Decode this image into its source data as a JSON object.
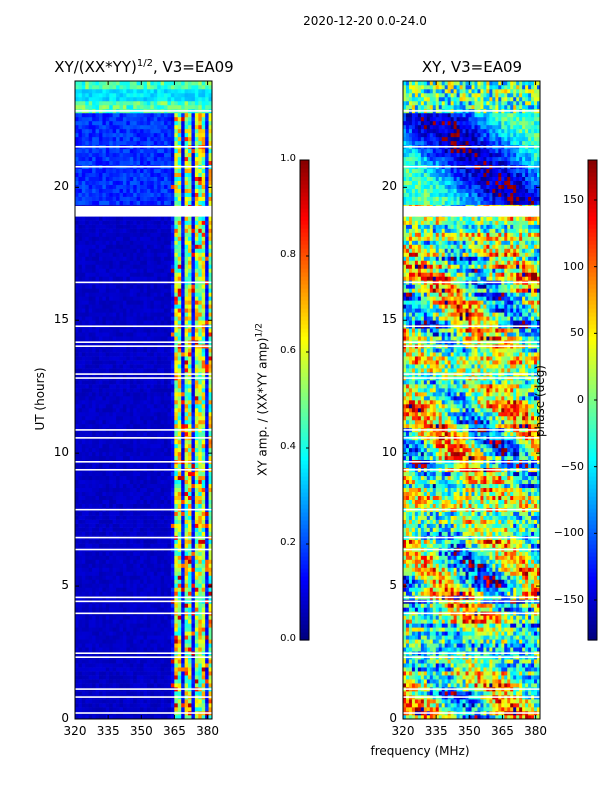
{
  "figure": {
    "suptitle": "2020-12-20 0.0-24.0",
    "xlabel": "frequency (MHz)"
  },
  "chart_data": [
    {
      "type": "heatmap",
      "title_main": "XY/(XX*YY)",
      "title_exp": "1/2",
      "title_tail": ", V3=EA09",
      "xlabel": "",
      "ylabel": "UT (hours)",
      "xlim": [
        320,
        382
      ],
      "ylim": [
        0,
        24
      ],
      "xticks": [
        320,
        335,
        350,
        365,
        380
      ],
      "xtick_labels": [
        "320",
        "335",
        "350",
        "365",
        "380"
      ],
      "yticks": [
        0,
        5,
        10,
        15,
        20
      ],
      "ytick_labels": [
        "0",
        "5",
        "10",
        "15",
        "20"
      ],
      "colorbar": {
        "label_main": "XY amp. / (XX*YY amp)",
        "label_exp": "1/2",
        "range": [
          0.0,
          1.0
        ],
        "ticks": [
          0.0,
          0.2,
          0.4,
          0.6,
          0.8,
          1.0
        ],
        "tick_labels": [
          "0.0",
          "0.2",
          "0.4",
          "0.6",
          "0.8",
          "1.0"
        ]
      },
      "colormap": "jet",
      "description_values": {
        "background_level": 0.05,
        "band_365_382_level": 0.5,
        "top_band_hours": [
          22.8,
          24.0
        ],
        "top_band_level": 0.45,
        "flagged_hours": [
          18.9,
          19.3
        ]
      }
    },
    {
      "type": "heatmap",
      "title": "XY, V3=EA09",
      "xlabel": "frequency (MHz)",
      "ylabel": "",
      "xlim": [
        320,
        382
      ],
      "ylim": [
        0,
        24
      ],
      "xticks": [
        320,
        335,
        350,
        365,
        380
      ],
      "xtick_labels": [
        "320",
        "335",
        "350",
        "365",
        "380"
      ],
      "yticks": [
        0,
        5,
        10,
        15,
        20
      ],
      "ytick_labels": [
        "0",
        "5",
        "10",
        "15",
        "20"
      ],
      "colorbar": {
        "label": "phase (deg)",
        "range": [
          -180,
          180
        ],
        "ticks": [
          -150,
          -100,
          -50,
          0,
          50,
          100,
          150
        ],
        "tick_labels": [
          "−150",
          "−100",
          "−50",
          "0",
          "50",
          "100",
          "150"
        ]
      },
      "colormap": "jet",
      "description_values": {
        "flagged_hours": [
          18.9,
          19.3
        ]
      }
    }
  ]
}
